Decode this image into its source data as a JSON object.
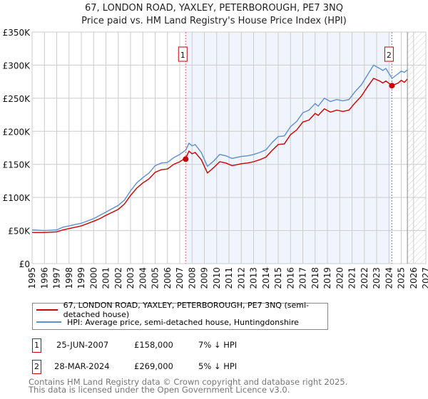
{
  "title_line1": "67, LONDON ROAD, YAXLEY, PETERBOROUGH, PE7 3NQ",
  "title_line2": "Price paid vs. HM Land Registry's House Price Index (HPI)",
  "chart_data": {
    "type": "line",
    "title": "67, LONDON ROAD, YAXLEY, PETERBOROUGH, PE7 3NQ — Price paid vs. HM Land Registry's House Price Index (HPI)",
    "xlim": [
      1995,
      2027
    ],
    "ylim": [
      0,
      350000
    ],
    "x_ticks": [
      "1995",
      "1996",
      "1997",
      "1998",
      "1999",
      "2000",
      "2001",
      "2002",
      "2003",
      "2004",
      "2005",
      "2006",
      "2007",
      "2008",
      "2009",
      "2010",
      "2011",
      "2012",
      "2013",
      "2014",
      "2015",
      "2016",
      "2017",
      "2018",
      "2019",
      "2020",
      "2021",
      "2022",
      "2023",
      "2024",
      "2025",
      "2026",
      "2027"
    ],
    "y_ticks": [
      {
        "v": 0,
        "label": "£0"
      },
      {
        "v": 50000,
        "label": "£50K"
      },
      {
        "v": 100000,
        "label": "£100K"
      },
      {
        "v": 150000,
        "label": "£150K"
      },
      {
        "v": 200000,
        "label": "£200K"
      },
      {
        "v": 250000,
        "label": "£250K"
      },
      {
        "v": 300000,
        "label": "£300K"
      },
      {
        "v": 350000,
        "label": "£350K"
      }
    ],
    "grid": true,
    "shaded_range": [
      2007.48,
      2024.24
    ],
    "forecast_hatch_from": 2025.5,
    "x": [
      1995,
      1996,
      1997,
      1997.5,
      1998,
      1999,
      2000,
      2000.5,
      2001,
      2002,
      2002.5,
      2003,
      2003.5,
      2004,
      2004.5,
      2005,
      2005.5,
      2006,
      2006.5,
      2007,
      2007.5,
      2007.75,
      2008,
      2008.25,
      2008.75,
      2009.25,
      2009.75,
      2010.25,
      2010.75,
      2011.25,
      2012,
      2012.5,
      2013,
      2013.5,
      2014,
      2014.5,
      2015,
      2015.5,
      2016,
      2016.5,
      2017,
      2017.5,
      2018,
      2018.25,
      2018.75,
      2019.25,
      2019.75,
      2020.25,
      2020.75,
      2021.25,
      2021.75,
      2022.25,
      2022.75,
      2023.25,
      2023.5,
      2023.75,
      2024.25,
      2024.75,
      2025,
      2025.25,
      2025.5
    ],
    "series": [
      {
        "name": "67, LONDON ROAD, YAXLEY, PETERBOROUGH, PE7 3NQ (semi-detached house)",
        "color": "#cc0000",
        "values": [
          47000,
          47000,
          48000,
          51000,
          53000,
          57000,
          64000,
          68000,
          73000,
          82000,
          90000,
          103000,
          114000,
          122000,
          128000,
          138000,
          142000,
          143000,
          150000,
          154000,
          160000,
          170000,
          166000,
          168000,
          157000,
          137000,
          145000,
          154000,
          152000,
          148000,
          151000,
          152000,
          154000,
          157000,
          161000,
          171000,
          180000,
          181000,
          195000,
          202000,
          214000,
          217000,
          227000,
          224000,
          234000,
          229000,
          232000,
          230000,
          232000,
          243000,
          253000,
          267000,
          280000,
          276000,
          273000,
          276000,
          269000,
          273000,
          277000,
          274000,
          279000
        ]
      },
      {
        "name": "HPI: Average price, semi-detached house, Huntingdonshire",
        "color": "#5b8fd4",
        "values": [
          51000,
          50000,
          51000,
          55000,
          57000,
          61000,
          68000,
          73000,
          78000,
          88000,
          96000,
          110000,
          122000,
          130000,
          137000,
          148000,
          152000,
          153000,
          160000,
          165000,
          172000,
          182000,
          178000,
          180000,
          168000,
          147000,
          155000,
          165000,
          163000,
          159000,
          162000,
          163000,
          165000,
          168000,
          172000,
          183000,
          192000,
          193000,
          207000,
          215000,
          228000,
          232000,
          242000,
          238000,
          250000,
          245000,
          248000,
          246000,
          248000,
          260000,
          270000,
          285000,
          300000,
          295000,
          292000,
          295000,
          280000,
          287000,
          291000,
          289000,
          293000
        ]
      }
    ],
    "annotations": [
      {
        "label": "1",
        "x": 2007.48,
        "y": 158000
      },
      {
        "label": "2",
        "x": 2024.24,
        "y": 269000
      }
    ]
  },
  "legend": [
    {
      "label": "67, LONDON ROAD, YAXLEY, PETERBOROUGH, PE7 3NQ (semi-detached house)",
      "color": "#cc0000"
    },
    {
      "label": "HPI: Average price, semi-detached house, Huntingdonshire",
      "color": "#5b8fd4"
    }
  ],
  "transactions": [
    {
      "num": "1",
      "date": "25-JUN-2007",
      "price": "£158,000",
      "hpi": "7% ↓ HPI"
    },
    {
      "num": "2",
      "date": "28-MAR-2024",
      "price": "£269,000",
      "hpi": "5% ↓ HPI"
    }
  ],
  "footer_line1": "Contains HM Land Registry data © Crown copyright and database right 2025.",
  "footer_line2": "This data is licensed under the Open Government Licence v3.0."
}
